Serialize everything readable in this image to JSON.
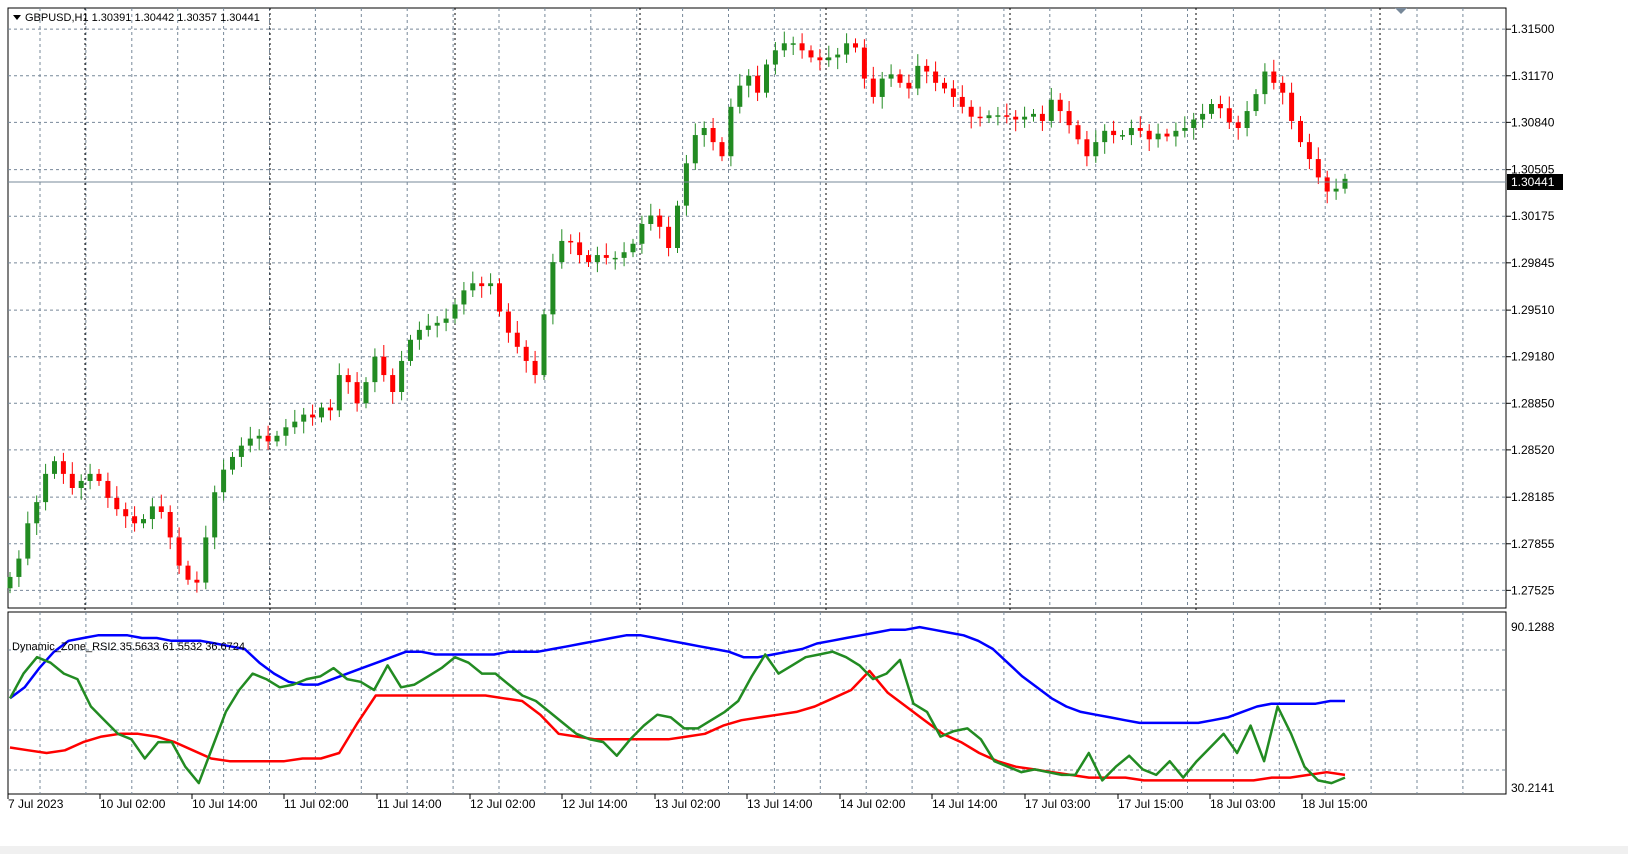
{
  "header": {
    "symbol_line": "GBPUSD,H1  1.30391 1.30442 1.30357 1.30441"
  },
  "indicator": {
    "label": "Dynamic_Zone_RSI2 35.5633 61.5532 36.6724",
    "max_label": "90.1288",
    "min_label": "30.2141"
  },
  "current_price_label": "1.30441",
  "colors": {
    "bull": "#228b22",
    "bear": "#ff0000",
    "grid": "#778899",
    "upper_band": "#0000ff",
    "lower_band": "#ff0000",
    "rsi_line": "#228b22"
  },
  "chart_data": [
    {
      "type": "candlestick",
      "title": "GBPUSD,H1",
      "ylim": [
        1.274,
        1.3165
      ],
      "price_ticks": [
        "1.31500",
        "1.31170",
        "1.30840",
        "1.30505",
        "1.30175",
        "1.29845",
        "1.29510",
        "1.29180",
        "1.28850",
        "1.28520",
        "1.28185",
        "1.27855",
        "1.27525"
      ],
      "time_labels": [
        "7 Jul 2023",
        "10 Jul 02:00",
        "10 Jul 14:00",
        "11 Jul 02:00",
        "11 Jul 14:00",
        "12 Jul 02:00",
        "12 Jul 14:00",
        "13 Jul 02:00",
        "13 Jul 14:00",
        "14 Jul 02:00",
        "14 Jul 14:00",
        "17 Jul 03:00",
        "17 Jul 15:00",
        "18 Jul 03:00",
        "18 Jul 15:00"
      ],
      "close_path": [
        1.2762,
        1.2775,
        1.28,
        1.2815,
        1.2835,
        1.2844,
        1.2835,
        1.2825,
        1.283,
        1.2835,
        1.283,
        1.2818,
        1.281,
        1.2805,
        1.28,
        1.2803,
        1.2812,
        1.2808,
        1.279,
        1.277,
        1.276,
        1.2758,
        1.279,
        1.2822,
        1.2838,
        1.2847,
        1.2855,
        1.286,
        1.2862,
        1.2858,
        1.2862,
        1.2868,
        1.2872,
        1.2877,
        1.2875,
        1.2882,
        1.288,
        1.2905,
        1.29,
        1.2885,
        1.29,
        1.2918,
        1.2905,
        1.2893,
        1.2915,
        1.293,
        1.2937,
        1.294,
        1.2942,
        1.2945,
        1.2955,
        1.2965,
        1.297,
        1.2968,
        1.297,
        1.295,
        1.2935,
        1.2925,
        1.2915,
        1.2905,
        1.2948,
        1.2985,
        1.3,
        1.2999,
        1.299,
        1.2985,
        1.299,
        1.2988,
        1.2988,
        1.2992,
        1.2998,
        1.3012,
        1.3018,
        1.301,
        1.2995,
        1.3025,
        1.3055,
        1.3075,
        1.308,
        1.307,
        1.306,
        1.3095,
        1.311,
        1.3117,
        1.3105,
        1.3125,
        1.3135,
        1.314,
        1.314,
        1.3135,
        1.313,
        1.3128,
        1.313,
        1.3132,
        1.314,
        1.3137,
        1.3115,
        1.3102,
        1.3115,
        1.3118,
        1.3112,
        1.3108,
        1.3124,
        1.312,
        1.3112,
        1.3108,
        1.3102,
        1.3095,
        1.3088,
        1.3087,
        1.3089,
        1.3089,
        1.3088,
        1.3086,
        1.3088,
        1.309,
        1.3085,
        1.31,
        1.3092,
        1.3082,
        1.3072,
        1.306,
        1.307,
        1.3078,
        1.3075,
        1.3075,
        1.308,
        1.3078,
        1.3072,
        1.3076,
        1.3074,
        1.3078,
        1.308,
        1.3086,
        1.309,
        1.3097,
        1.3094,
        1.3084,
        1.308,
        1.3092,
        1.3104,
        1.312,
        1.3112,
        1.3105,
        1.3085,
        1.307,
        1.3058,
        1.3045,
        1.3035,
        1.3037,
        1.3044
      ]
    },
    {
      "type": "line",
      "title": "Dynamic_Zone_RSI2",
      "ylim": [
        30.2141,
        90.1288
      ],
      "series": [
        {
          "color": "#0000ff",
          "values": [
            63,
            67,
            74,
            80,
            84,
            85,
            86,
            86,
            86,
            85,
            85,
            84,
            84,
            84,
            83,
            82,
            81,
            76,
            72,
            69,
            68,
            68,
            70,
            72,
            74,
            76,
            78,
            80,
            80,
            79,
            79,
            79,
            79,
            79,
            80,
            80,
            80,
            81,
            82,
            83,
            84,
            85,
            86,
            86,
            85,
            84,
            83,
            82,
            81,
            80,
            78,
            78,
            79,
            80,
            81,
            83,
            84,
            85,
            86,
            87,
            88,
            88,
            89,
            88,
            87,
            86,
            84,
            81,
            76,
            71,
            67,
            63,
            60,
            58,
            57,
            56,
            55,
            54,
            54,
            54,
            54,
            54,
            55,
            56,
            58,
            60,
            61,
            61,
            61,
            61,
            62,
            62
          ]
        },
        {
          "color": "#ff0000",
          "values": [
            45,
            44,
            43,
            44,
            47,
            49,
            50,
            50,
            49,
            47,
            44,
            41,
            40,
            40,
            40,
            40,
            41,
            41,
            43,
            54,
            64,
            64,
            64,
            64,
            64,
            64,
            64,
            63,
            62,
            57,
            50,
            49,
            48,
            48,
            48,
            48,
            48,
            49,
            50,
            53,
            55,
            56,
            57,
            58,
            60,
            63,
            66,
            73,
            65,
            60,
            55,
            50,
            47,
            43,
            40,
            38,
            37,
            36,
            35,
            34,
            34,
            34,
            33,
            33,
            33,
            33,
            33,
            33,
            33,
            34,
            34,
            35,
            36,
            35
          ]
        },
        {
          "color": "#228b22",
          "values": [
            63,
            72,
            78,
            76,
            72,
            70,
            60,
            55,
            50,
            48,
            41,
            47,
            47,
            38,
            32,
            45,
            58,
            66,
            72,
            70,
            67,
            68,
            70,
            71,
            74,
            70,
            69,
            66,
            75,
            67,
            68,
            71,
            74,
            78,
            76,
            72,
            72,
            68,
            64,
            62,
            58,
            54,
            50,
            48,
            47,
            42,
            48,
            53,
            57,
            56,
            52,
            52,
            55,
            58,
            62,
            71,
            79,
            72,
            75,
            78,
            79,
            80,
            78,
            75,
            70,
            72,
            77,
            61,
            58,
            49,
            51,
            52,
            48,
            40,
            38,
            36,
            37,
            36,
            35,
            35,
            43,
            33,
            38,
            42,
            37,
            35,
            40,
            34,
            40,
            45,
            50,
            43,
            53,
            40,
            60,
            50,
            38,
            33,
            32,
            34
          ]
        }
      ]
    }
  ]
}
